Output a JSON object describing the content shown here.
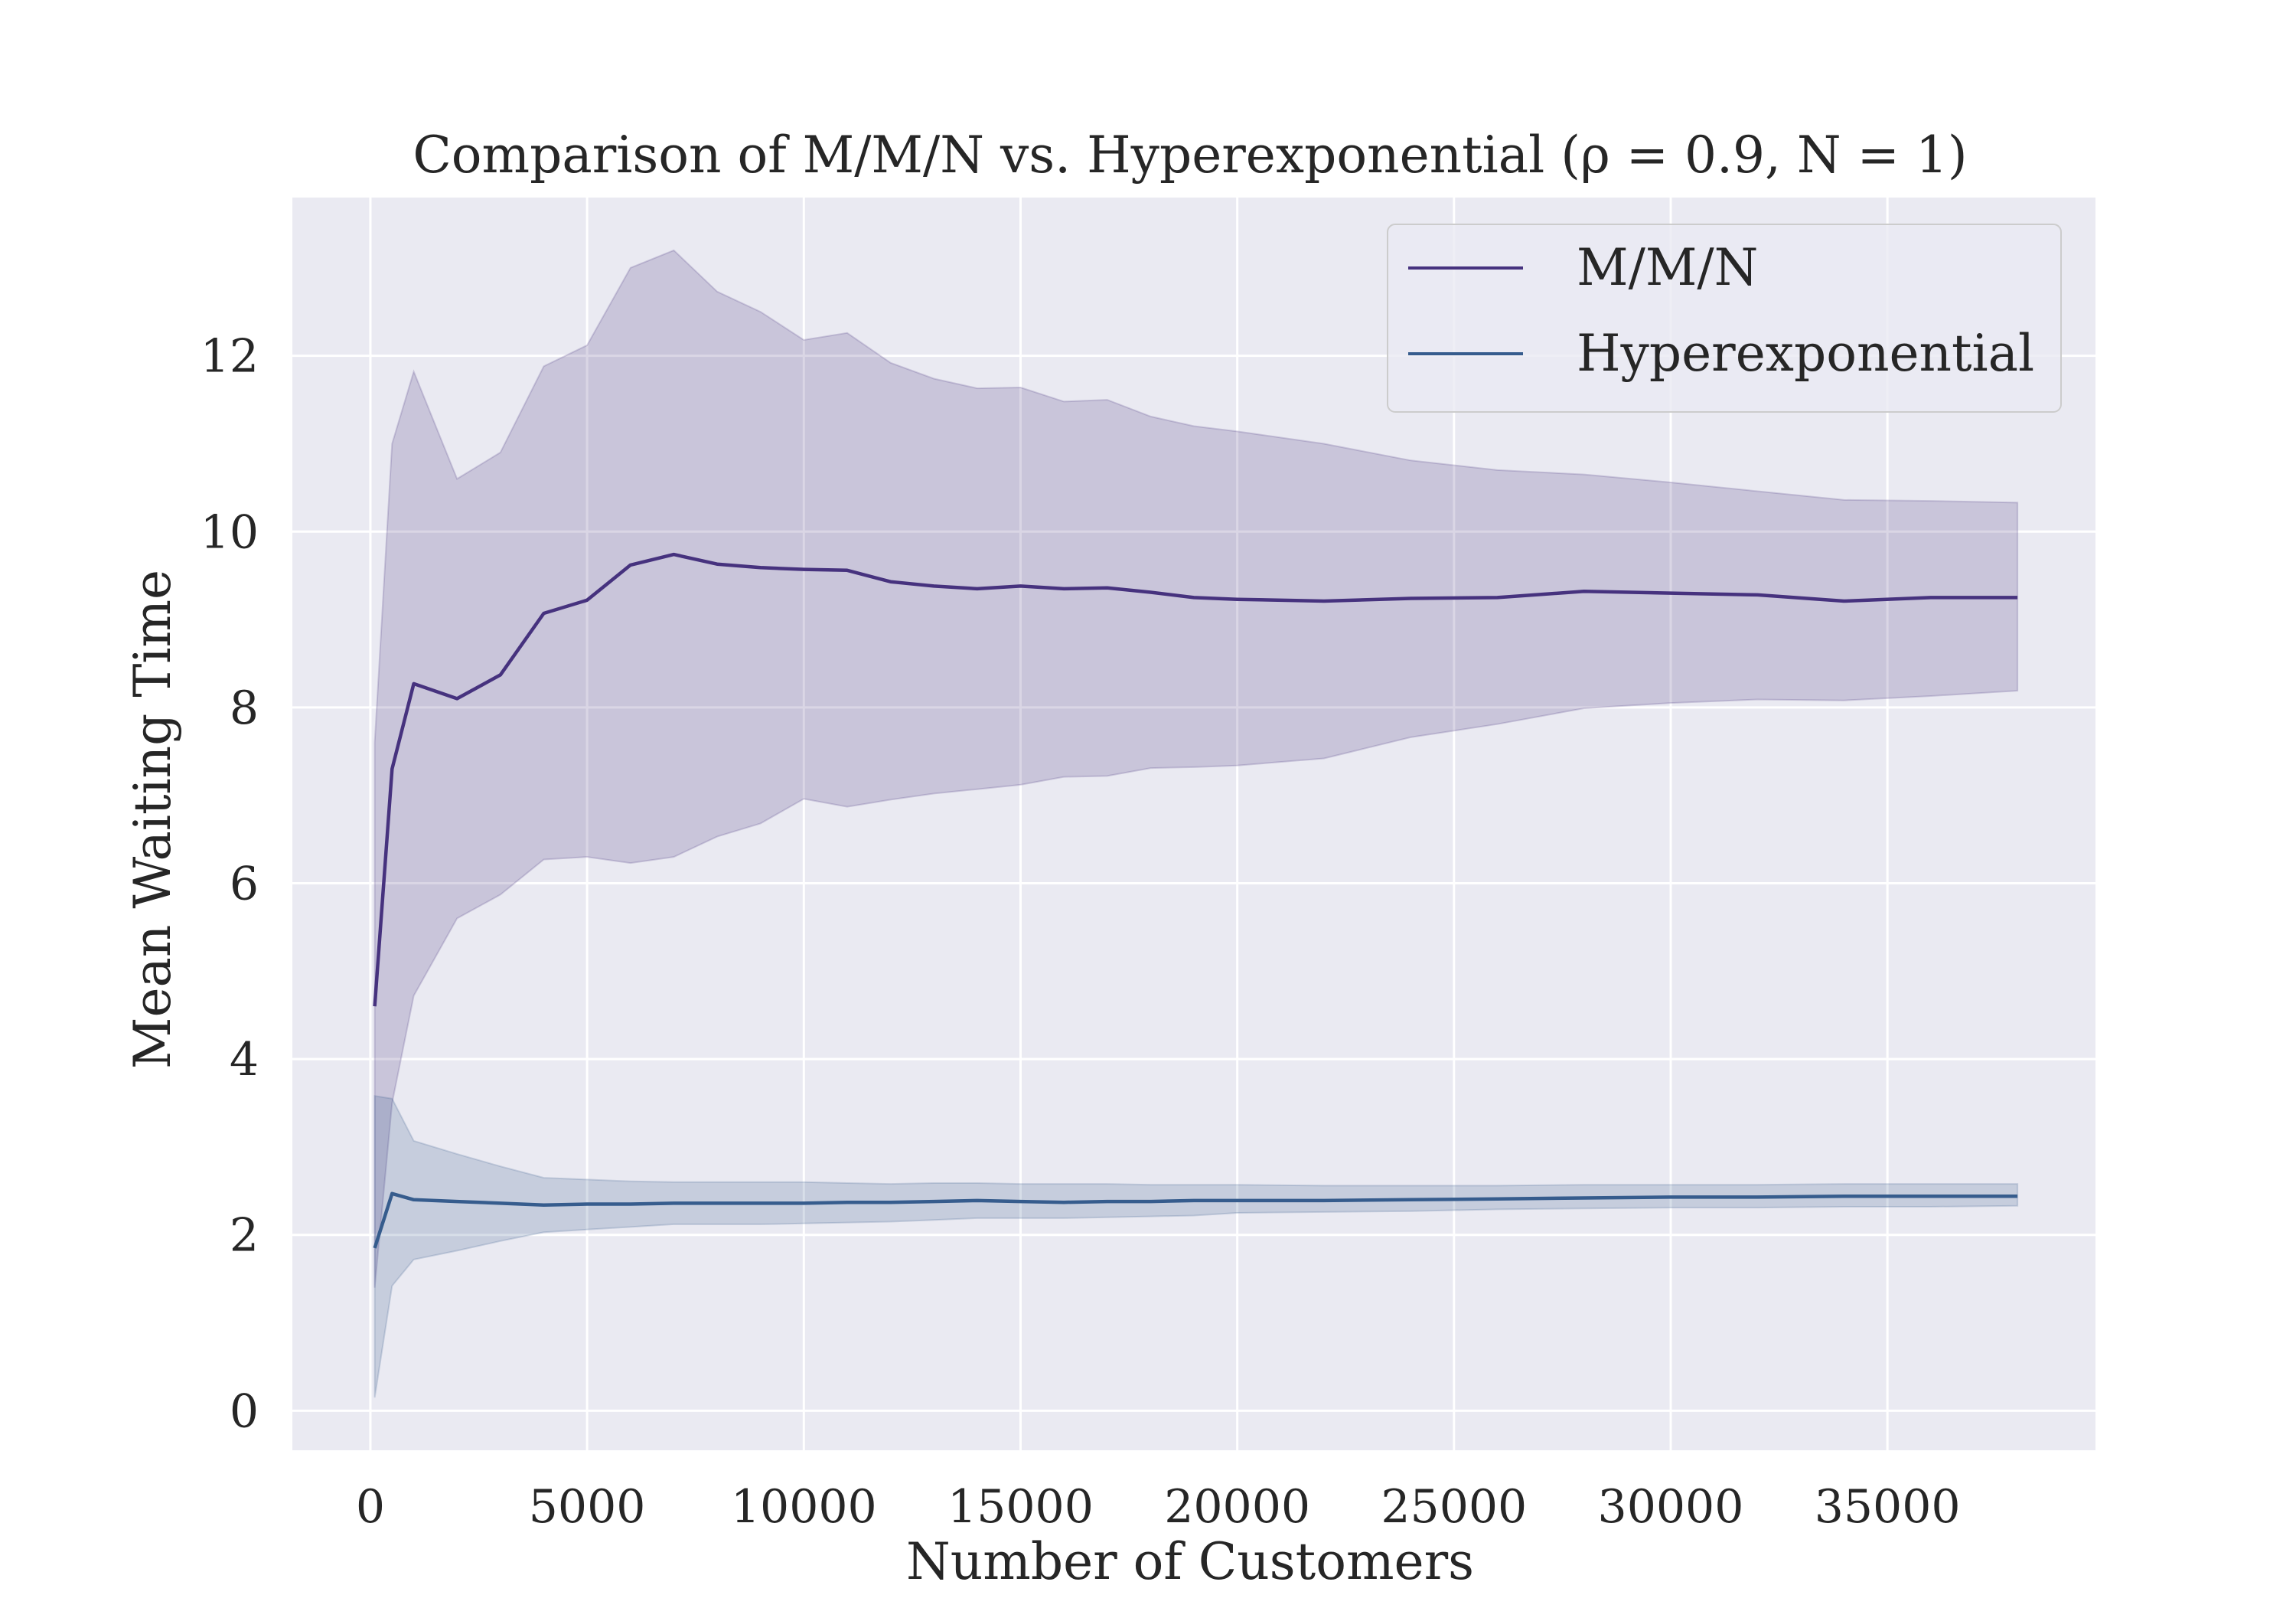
{
  "chart_data": {
    "type": "line",
    "title": "Comparison of M/M/N vs. Hyperexponential (ρ = 0.9, N = 1)",
    "xlabel": "Number of Customers",
    "ylabel": "Mean Waiting Time",
    "xlim": [
      -1800,
      39800
    ],
    "ylim": [
      -0.45,
      13.8
    ],
    "xticks": [
      0,
      5000,
      10000,
      15000,
      20000,
      25000,
      30000,
      35000
    ],
    "yticks": [
      0,
      2,
      4,
      6,
      8,
      10,
      12
    ],
    "grid": true,
    "legend_position": "top-right",
    "colors": {
      "background": "#eaeaf2",
      "grid": "#ffffff",
      "mmn": "#46327e",
      "hyper": "#365c8d"
    },
    "series": [
      {
        "name": "M/M/N",
        "x": [
          100,
          500,
          1000,
          2000,
          3000,
          4000,
          5000,
          6000,
          7000,
          8000,
          9000,
          10000,
          11000,
          12000,
          13000,
          14000,
          15000,
          16000,
          17000,
          18000,
          19000,
          20000,
          22000,
          24000,
          26000,
          28000,
          30000,
          32000,
          34000,
          36000,
          38000
        ],
        "y": [
          4.6,
          7.3,
          8.27,
          8.1,
          8.37,
          9.07,
          9.22,
          9.62,
          9.74,
          9.63,
          9.59,
          9.57,
          9.56,
          9.43,
          9.38,
          9.35,
          9.38,
          9.35,
          9.36,
          9.31,
          9.25,
          9.23,
          9.21,
          9.24,
          9.25,
          9.32,
          9.3,
          9.28,
          9.21,
          9.25,
          9.25
        ],
        "upper": [
          7.6,
          11.0,
          11.82,
          10.6,
          10.9,
          11.88,
          12.12,
          13.0,
          13.2,
          12.73,
          12.5,
          12.18,
          12.26,
          11.92,
          11.74,
          11.63,
          11.64,
          11.48,
          11.5,
          11.31,
          11.2,
          11.14,
          11.0,
          10.81,
          10.7,
          10.65,
          10.56,
          10.46,
          10.36,
          10.35,
          10.33
        ],
        "lower": [
          1.4,
          3.5,
          4.72,
          5.6,
          5.87,
          6.27,
          6.3,
          6.23,
          6.3,
          6.53,
          6.68,
          6.96,
          6.87,
          6.95,
          7.02,
          7.07,
          7.12,
          7.21,
          7.22,
          7.31,
          7.32,
          7.34,
          7.42,
          7.66,
          7.81,
          7.99,
          8.05,
          8.09,
          8.08,
          8.13,
          8.19
        ]
      },
      {
        "name": "Hyperexponential",
        "x": [
          100,
          500,
          1000,
          2000,
          3000,
          4000,
          5000,
          6000,
          7000,
          8000,
          9000,
          10000,
          11000,
          12000,
          13000,
          14000,
          15000,
          16000,
          17000,
          18000,
          19000,
          20000,
          22000,
          24000,
          26000,
          28000,
          30000,
          32000,
          34000,
          36000,
          38000
        ],
        "y": [
          1.85,
          2.47,
          2.4,
          2.38,
          2.36,
          2.34,
          2.35,
          2.35,
          2.36,
          2.36,
          2.36,
          2.36,
          2.37,
          2.37,
          2.38,
          2.39,
          2.38,
          2.37,
          2.38,
          2.38,
          2.39,
          2.39,
          2.39,
          2.4,
          2.41,
          2.42,
          2.43,
          2.43,
          2.44,
          2.44,
          2.44
        ],
        "upper": [
          3.58,
          3.55,
          3.07,
          2.92,
          2.78,
          2.65,
          2.63,
          2.61,
          2.6,
          2.6,
          2.6,
          2.6,
          2.59,
          2.58,
          2.59,
          2.59,
          2.58,
          2.58,
          2.58,
          2.57,
          2.57,
          2.57,
          2.56,
          2.56,
          2.56,
          2.57,
          2.57,
          2.57,
          2.58,
          2.58,
          2.58
        ],
        "lower": [
          0.15,
          1.42,
          1.72,
          1.82,
          1.93,
          2.03,
          2.06,
          2.09,
          2.12,
          2.12,
          2.12,
          2.13,
          2.14,
          2.15,
          2.17,
          2.19,
          2.19,
          2.19,
          2.2,
          2.21,
          2.22,
          2.25,
          2.26,
          2.27,
          2.29,
          2.3,
          2.31,
          2.31,
          2.32,
          2.32,
          2.33
        ]
      }
    ]
  }
}
